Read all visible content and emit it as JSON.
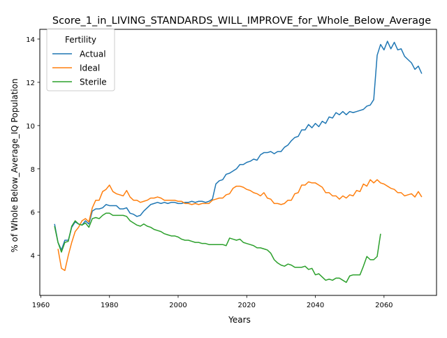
{
  "chart_data": {
    "type": "line",
    "title": "Score_1_in_LIVING_STANDARDS_WILL_IMPROVE_for_Whole_Below_Average",
    "xlabel": "Years",
    "ylabel": "% of Whole Below_Average_IQ Population",
    "xlim": [
      1959.7,
      2075.3
    ],
    "ylim": [
      2.15,
      14.45
    ],
    "xticks": [
      1960,
      1980,
      2000,
      2020,
      2040,
      2060
    ],
    "yticks": [
      4,
      6,
      8,
      10,
      12,
      14
    ],
    "grid": false,
    "legend": {
      "title": "Fertility",
      "placement": "top-left"
    },
    "series": [
      {
        "name": "Actual",
        "color": "#1f77b4",
        "points": [
          [
            1964,
            5.45
          ],
          [
            1965,
            4.6
          ],
          [
            1966,
            4.25
          ],
          [
            1967,
            4.7
          ],
          [
            1968,
            4.7
          ],
          [
            1969,
            5.3
          ],
          [
            1970,
            5.55
          ],
          [
            1971,
            5.45
          ],
          [
            1972,
            5.4
          ],
          [
            1973,
            5.6
          ],
          [
            1974,
            5.45
          ],
          [
            1975,
            6.05
          ],
          [
            1976,
            6.15
          ],
          [
            1977,
            6.15
          ],
          [
            1978,
            6.2
          ],
          [
            1979,
            6.35
          ],
          [
            1980,
            6.3
          ],
          [
            1981,
            6.3
          ],
          [
            1982,
            6.3
          ],
          [
            1983,
            6.15
          ],
          [
            1984,
            6.15
          ],
          [
            1985,
            6.2
          ],
          [
            1986,
            5.95
          ],
          [
            1987,
            5.9
          ],
          [
            1988,
            5.8
          ],
          [
            1989,
            5.85
          ],
          [
            1990,
            6.05
          ],
          [
            1991,
            6.2
          ],
          [
            1992,
            6.35
          ],
          [
            1993,
            6.4
          ],
          [
            1994,
            6.45
          ],
          [
            1995,
            6.4
          ],
          [
            1996,
            6.45
          ],
          [
            1997,
            6.4
          ],
          [
            1998,
            6.45
          ],
          [
            1999,
            6.45
          ],
          [
            2000,
            6.4
          ],
          [
            2001,
            6.4
          ],
          [
            2002,
            6.45
          ],
          [
            2003,
            6.45
          ],
          [
            2004,
            6.5
          ],
          [
            2005,
            6.45
          ],
          [
            2006,
            6.5
          ],
          [
            2007,
            6.5
          ],
          [
            2008,
            6.45
          ],
          [
            2009,
            6.5
          ],
          [
            2010,
            6.6
          ],
          [
            2011,
            7.3
          ],
          [
            2012,
            7.45
          ],
          [
            2013,
            7.5
          ],
          [
            2014,
            7.75
          ],
          [
            2015,
            7.8
          ],
          [
            2016,
            7.9
          ],
          [
            2017,
            8.0
          ],
          [
            2018,
            8.2
          ],
          [
            2019,
            8.2
          ],
          [
            2020,
            8.3
          ],
          [
            2021,
            8.35
          ],
          [
            2022,
            8.45
          ],
          [
            2023,
            8.4
          ],
          [
            2024,
            8.65
          ],
          [
            2025,
            8.75
          ],
          [
            2026,
            8.75
          ],
          [
            2027,
            8.8
          ],
          [
            2028,
            8.7
          ],
          [
            2029,
            8.8
          ],
          [
            2030,
            8.8
          ],
          [
            2031,
            9.0
          ],
          [
            2032,
            9.1
          ],
          [
            2033,
            9.3
          ],
          [
            2034,
            9.45
          ],
          [
            2035,
            9.5
          ],
          [
            2036,
            9.8
          ],
          [
            2037,
            9.8
          ],
          [
            2038,
            10.05
          ],
          [
            2039,
            9.9
          ],
          [
            2040,
            10.1
          ],
          [
            2041,
            9.95
          ],
          [
            2042,
            10.2
          ],
          [
            2043,
            10.1
          ],
          [
            2044,
            10.4
          ],
          [
            2045,
            10.35
          ],
          [
            2046,
            10.6
          ],
          [
            2047,
            10.5
          ],
          [
            2048,
            10.65
          ],
          [
            2049,
            10.5
          ],
          [
            2050,
            10.65
          ],
          [
            2051,
            10.6
          ],
          [
            2052,
            10.65
          ],
          [
            2053,
            10.7
          ],
          [
            2054,
            10.75
          ],
          [
            2055,
            10.9
          ],
          [
            2056,
            10.95
          ],
          [
            2057,
            11.2
          ],
          [
            2058,
            13.25
          ],
          [
            2059,
            13.75
          ],
          [
            2060,
            13.5
          ],
          [
            2061,
            13.9
          ],
          [
            2062,
            13.55
          ],
          [
            2063,
            13.85
          ],
          [
            2064,
            13.5
          ],
          [
            2065,
            13.55
          ],
          [
            2066,
            13.2
          ],
          [
            2067,
            13.05
          ],
          [
            2068,
            12.9
          ],
          [
            2069,
            12.6
          ],
          [
            2070,
            12.75
          ],
          [
            2071,
            12.4
          ]
        ]
      },
      {
        "name": "Ideal",
        "color": "#ff7f0e",
        "points": [
          [
            1965,
            4.3
          ],
          [
            1966,
            3.4
          ],
          [
            1967,
            3.3
          ],
          [
            1968,
            4.0
          ],
          [
            1969,
            4.6
          ],
          [
            1970,
            5.1
          ],
          [
            1971,
            5.3
          ],
          [
            1972,
            5.6
          ],
          [
            1973,
            5.7
          ],
          [
            1974,
            5.55
          ],
          [
            1975,
            6.2
          ],
          [
            1976,
            6.55
          ],
          [
            1977,
            6.55
          ],
          [
            1978,
            6.95
          ],
          [
            1979,
            7.05
          ],
          [
            1980,
            7.25
          ],
          [
            1981,
            6.95
          ],
          [
            1982,
            6.85
          ],
          [
            1983,
            6.8
          ],
          [
            1984,
            6.75
          ],
          [
            1985,
            7.0
          ],
          [
            1986,
            6.7
          ],
          [
            1987,
            6.55
          ],
          [
            1988,
            6.55
          ],
          [
            1989,
            6.45
          ],
          [
            1990,
            6.5
          ],
          [
            1991,
            6.55
          ],
          [
            1992,
            6.65
          ],
          [
            1993,
            6.65
          ],
          [
            1994,
            6.7
          ],
          [
            1995,
            6.65
          ],
          [
            1996,
            6.55
          ],
          [
            1997,
            6.55
          ],
          [
            1998,
            6.55
          ],
          [
            1999,
            6.55
          ],
          [
            2000,
            6.5
          ],
          [
            2001,
            6.5
          ],
          [
            2002,
            6.4
          ],
          [
            2003,
            6.4
          ],
          [
            2004,
            6.35
          ],
          [
            2005,
            6.4
          ],
          [
            2006,
            6.35
          ],
          [
            2007,
            6.4
          ],
          [
            2008,
            6.4
          ],
          [
            2009,
            6.4
          ],
          [
            2010,
            6.55
          ],
          [
            2011,
            6.6
          ],
          [
            2012,
            6.65
          ],
          [
            2013,
            6.65
          ],
          [
            2014,
            6.8
          ],
          [
            2015,
            6.85
          ],
          [
            2016,
            7.1
          ],
          [
            2017,
            7.2
          ],
          [
            2018,
            7.2
          ],
          [
            2019,
            7.15
          ],
          [
            2020,
            7.05
          ],
          [
            2021,
            7.0
          ],
          [
            2022,
            6.9
          ],
          [
            2023,
            6.85
          ],
          [
            2024,
            6.75
          ],
          [
            2025,
            6.9
          ],
          [
            2026,
            6.65
          ],
          [
            2027,
            6.6
          ],
          [
            2028,
            6.4
          ],
          [
            2029,
            6.4
          ],
          [
            2030,
            6.35
          ],
          [
            2031,
            6.4
          ],
          [
            2032,
            6.55
          ],
          [
            2033,
            6.55
          ],
          [
            2034,
            6.85
          ],
          [
            2035,
            6.9
          ],
          [
            2036,
            7.25
          ],
          [
            2037,
            7.25
          ],
          [
            2038,
            7.4
          ],
          [
            2039,
            7.35
          ],
          [
            2040,
            7.35
          ],
          [
            2041,
            7.25
          ],
          [
            2042,
            7.15
          ],
          [
            2043,
            6.9
          ],
          [
            2044,
            6.9
          ],
          [
            2045,
            6.75
          ],
          [
            2046,
            6.75
          ],
          [
            2047,
            6.6
          ],
          [
            2048,
            6.75
          ],
          [
            2049,
            6.65
          ],
          [
            2050,
            6.8
          ],
          [
            2051,
            6.75
          ],
          [
            2052,
            7.0
          ],
          [
            2053,
            6.95
          ],
          [
            2054,
            7.3
          ],
          [
            2055,
            7.2
          ],
          [
            2056,
            7.5
          ],
          [
            2057,
            7.35
          ],
          [
            2058,
            7.5
          ],
          [
            2059,
            7.35
          ],
          [
            2060,
            7.3
          ],
          [
            2061,
            7.2
          ],
          [
            2062,
            7.1
          ],
          [
            2063,
            7.05
          ],
          [
            2064,
            6.9
          ],
          [
            2065,
            6.9
          ],
          [
            2066,
            6.75
          ],
          [
            2067,
            6.8
          ],
          [
            2068,
            6.85
          ],
          [
            2069,
            6.7
          ],
          [
            2070,
            6.95
          ],
          [
            2071,
            6.7
          ]
        ]
      },
      {
        "name": "Sterile",
        "color": "#2ca02c",
        "points": [
          [
            1964,
            5.35
          ],
          [
            1965,
            4.6
          ],
          [
            1966,
            4.15
          ],
          [
            1967,
            4.6
          ],
          [
            1968,
            4.65
          ],
          [
            1969,
            5.35
          ],
          [
            1970,
            5.6
          ],
          [
            1971,
            5.45
          ],
          [
            1972,
            5.4
          ],
          [
            1973,
            5.5
          ],
          [
            1974,
            5.3
          ],
          [
            1975,
            5.7
          ],
          [
            1976,
            5.75
          ],
          [
            1977,
            5.7
          ],
          [
            1978,
            5.85
          ],
          [
            1979,
            5.95
          ],
          [
            1980,
            5.95
          ],
          [
            1981,
            5.85
          ],
          [
            1982,
            5.85
          ],
          [
            1983,
            5.85
          ],
          [
            1984,
            5.85
          ],
          [
            1985,
            5.8
          ],
          [
            1986,
            5.6
          ],
          [
            1987,
            5.5
          ],
          [
            1988,
            5.4
          ],
          [
            1989,
            5.35
          ],
          [
            1990,
            5.45
          ],
          [
            1991,
            5.35
          ],
          [
            1992,
            5.3
          ],
          [
            1993,
            5.2
          ],
          [
            1994,
            5.15
          ],
          [
            1995,
            5.1
          ],
          [
            1996,
            5.0
          ],
          [
            1997,
            4.95
          ],
          [
            1998,
            4.9
          ],
          [
            1999,
            4.9
          ],
          [
            2000,
            4.85
          ],
          [
            2001,
            4.75
          ],
          [
            2002,
            4.7
          ],
          [
            2003,
            4.7
          ],
          [
            2004,
            4.65
          ],
          [
            2005,
            4.6
          ],
          [
            2006,
            4.6
          ],
          [
            2007,
            4.55
          ],
          [
            2008,
            4.55
          ],
          [
            2009,
            4.5
          ],
          [
            2010,
            4.5
          ],
          [
            2011,
            4.5
          ],
          [
            2012,
            4.5
          ],
          [
            2013,
            4.5
          ],
          [
            2014,
            4.45
          ],
          [
            2015,
            4.8
          ],
          [
            2016,
            4.75
          ],
          [
            2017,
            4.7
          ],
          [
            2018,
            4.75
          ],
          [
            2019,
            4.6
          ],
          [
            2020,
            4.55
          ],
          [
            2021,
            4.5
          ],
          [
            2022,
            4.45
          ],
          [
            2023,
            4.35
          ],
          [
            2024,
            4.35
          ],
          [
            2025,
            4.3
          ],
          [
            2026,
            4.25
          ],
          [
            2027,
            4.1
          ],
          [
            2028,
            3.8
          ],
          [
            2029,
            3.65
          ],
          [
            2030,
            3.55
          ],
          [
            2031,
            3.5
          ],
          [
            2032,
            3.6
          ],
          [
            2033,
            3.55
          ],
          [
            2034,
            3.45
          ],
          [
            2035,
            3.45
          ],
          [
            2036,
            3.45
          ],
          [
            2037,
            3.5
          ],
          [
            2038,
            3.35
          ],
          [
            2039,
            3.4
          ],
          [
            2040,
            3.1
          ],
          [
            2041,
            3.15
          ],
          [
            2042,
            3.0
          ],
          [
            2043,
            2.85
          ],
          [
            2044,
            2.9
          ],
          [
            2045,
            2.85
          ],
          [
            2046,
            2.95
          ],
          [
            2047,
            2.95
          ],
          [
            2048,
            2.85
          ],
          [
            2049,
            2.75
          ],
          [
            2050,
            3.05
          ],
          [
            2051,
            3.1
          ],
          [
            2052,
            3.1
          ],
          [
            2053,
            3.1
          ],
          [
            2054,
            3.5
          ],
          [
            2055,
            3.95
          ],
          [
            2056,
            3.8
          ],
          [
            2057,
            3.8
          ],
          [
            2058,
            3.95
          ],
          [
            2059,
            5.0
          ]
        ]
      }
    ]
  }
}
